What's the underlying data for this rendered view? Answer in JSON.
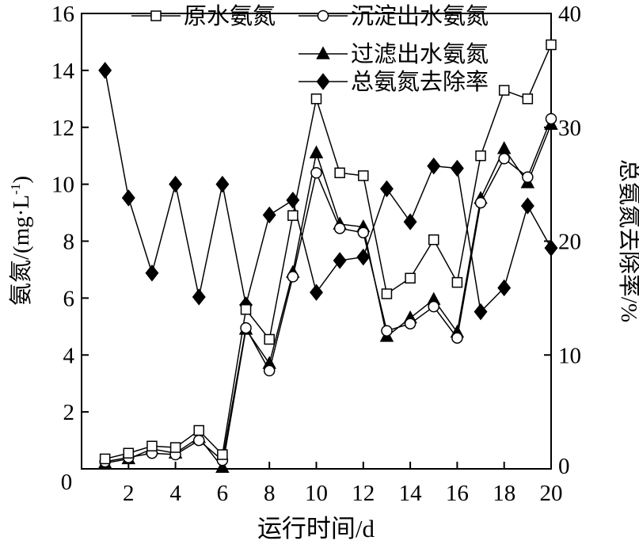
{
  "chart_data": {
    "type": "line",
    "xlabel": "运行时间/d",
    "ylabel_left_main": "氨氮/(mg·L",
    "ylabel_left_sup": "-1",
    "ylabel_left_end": ")",
    "ylabel_right": "总氨氮去除率/%",
    "x_ticks": [
      2,
      4,
      6,
      8,
      10,
      12,
      14,
      16,
      18,
      20
    ],
    "y_left_ticks": [
      0,
      2,
      4,
      6,
      8,
      10,
      12,
      14,
      16
    ],
    "y_right_ticks": [
      0,
      10,
      20,
      30,
      40
    ],
    "xlim": [
      0,
      20
    ],
    "ylim_left": [
      0,
      16
    ],
    "ylim_right": [
      0,
      40
    ],
    "grid": false,
    "legend_position": "top",
    "x": [
      1,
      2,
      3,
      4,
      5,
      6,
      7,
      8,
      9,
      10,
      11,
      12,
      13,
      14,
      15,
      16,
      17,
      18,
      19,
      20
    ],
    "series": [
      {
        "name": "原水氨氮",
        "marker": "square-open",
        "axis": "left",
        "values": [
          0.35,
          0.55,
          0.8,
          0.75,
          1.35,
          0.5,
          5.6,
          4.55,
          8.9,
          13.0,
          10.4,
          10.3,
          6.15,
          6.7,
          8.05,
          6.55,
          11.0,
          13.3,
          13.0,
          14.9
        ]
      },
      {
        "name": "沉淀出水氨氮",
        "marker": "circle-open",
        "axis": "left",
        "values": [
          0.25,
          0.4,
          0.55,
          0.5,
          1.0,
          0.3,
          4.95,
          3.45,
          6.75,
          10.4,
          8.45,
          8.3,
          4.85,
          5.1,
          5.7,
          4.6,
          9.35,
          10.9,
          10.25,
          12.3
        ]
      },
      {
        "name": "过滤出水氨氮",
        "marker": "triangle-filled",
        "axis": "left",
        "values": [
          0.2,
          0.35,
          0.7,
          0.55,
          1.1,
          0.05,
          4.9,
          3.7,
          6.9,
          11.1,
          8.6,
          8.5,
          4.65,
          5.3,
          5.95,
          4.8,
          9.5,
          11.25,
          10.05,
          12.1
        ]
      },
      {
        "name": "总氨氮去除率",
        "marker": "diamond-filled",
        "axis": "right",
        "values": [
          35.0,
          23.8,
          17.2,
          25.0,
          15.1,
          25.0,
          14.4,
          22.3,
          23.6,
          15.5,
          18.3,
          18.6,
          24.6,
          21.7,
          26.6,
          26.4,
          13.8,
          15.9,
          23.1,
          19.4
        ]
      }
    ]
  }
}
